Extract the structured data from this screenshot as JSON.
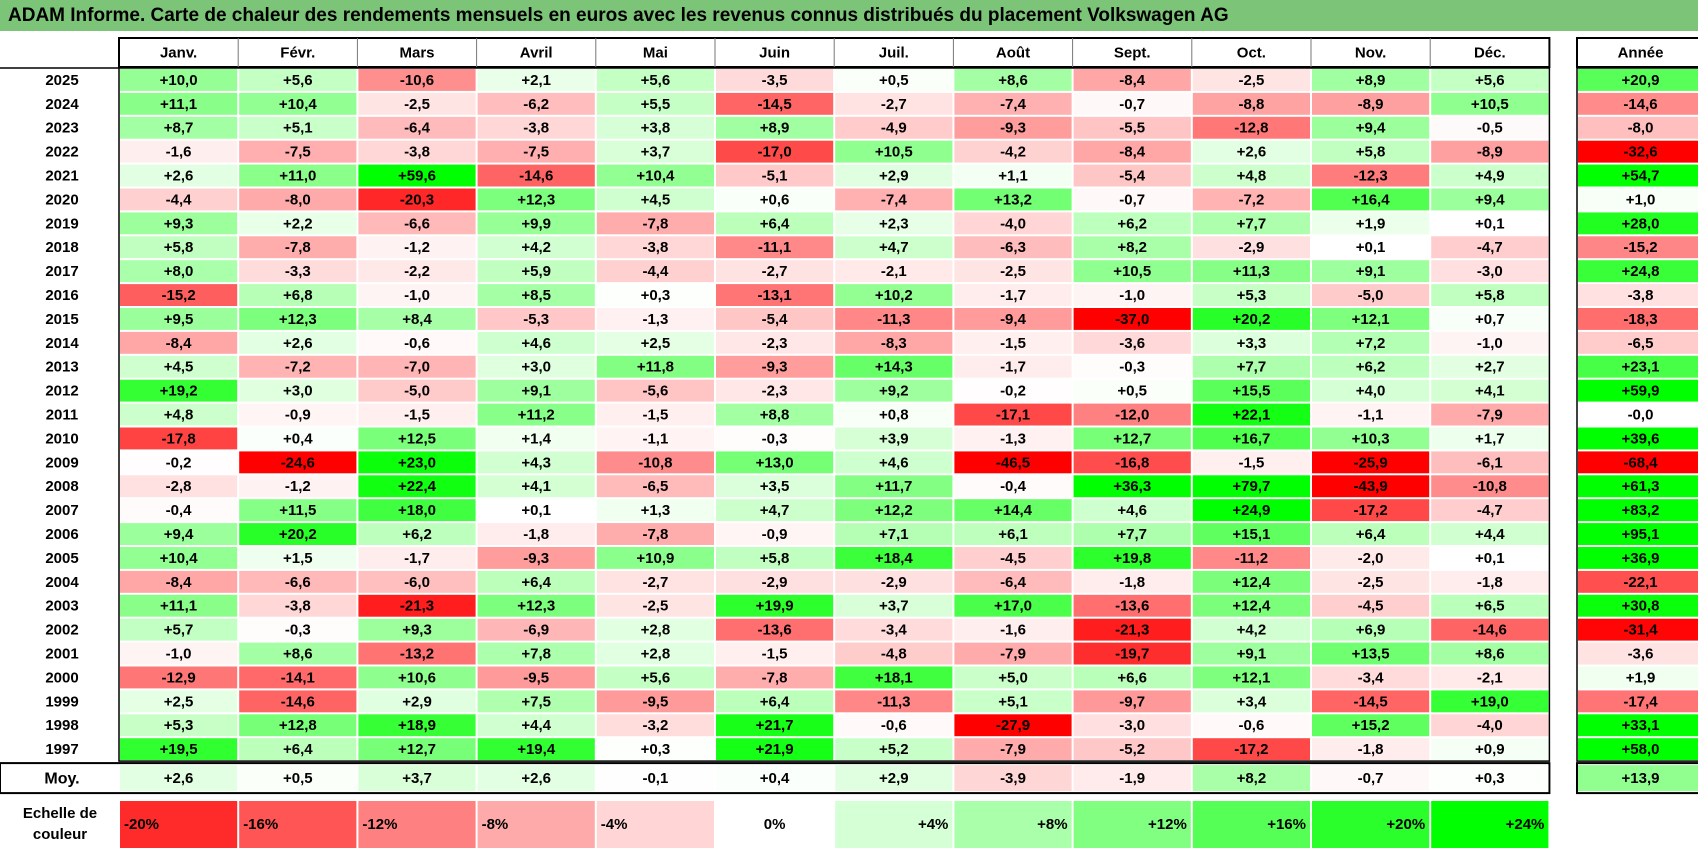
{
  "title": "ADAM Informe. Carte de chaleur des rendements mensuels en euros avec les revenus connus distribués du placement Volkswagen AG",
  "colors": {
    "title_bg": "#7cc578",
    "positive": "#00ff00",
    "negative": "#ff0000",
    "neutral": "#ffffff"
  },
  "chart_data": {
    "type": "heatmap",
    "unit": "%",
    "months": [
      "Janv.",
      "Févr.",
      "Mars",
      "Avril",
      "Mai",
      "Juin",
      "Juil.",
      "Août",
      "Sept.",
      "Oct.",
      "Nov.",
      "Déc."
    ],
    "year_header": "Année",
    "avg_label": "Moy.",
    "rows": [
      {
        "year": "2025",
        "values": [
          "+10,0",
          "+5,6",
          "-10,6",
          "+2,1",
          "+5,6",
          "-3,5",
          "+0,5",
          "+8,6",
          "-8,4",
          "-2,5",
          "+8,9",
          "+5,6"
        ],
        "annual": "+20,9"
      },
      {
        "year": "2024",
        "values": [
          "+11,1",
          "+10,4",
          "-2,5",
          "-6,2",
          "+5,5",
          "-14,5",
          "-2,7",
          "-7,4",
          "-0,7",
          "-8,8",
          "-8,9",
          "+10,5"
        ],
        "annual": "-14,6"
      },
      {
        "year": "2023",
        "values": [
          "+8,7",
          "+5,1",
          "-6,4",
          "-3,8",
          "+3,8",
          "+8,9",
          "-4,9",
          "-9,3",
          "-5,5",
          "-12,8",
          "+9,4",
          "-0,5"
        ],
        "annual": "-8,0"
      },
      {
        "year": "2022",
        "values": [
          "-1,6",
          "-7,5",
          "-3,8",
          "-7,5",
          "+3,7",
          "-17,0",
          "+10,5",
          "-4,2",
          "-8,4",
          "+2,6",
          "+5,8",
          "-8,9"
        ],
        "annual": "-32,6"
      },
      {
        "year": "2021",
        "values": [
          "+2,6",
          "+11,0",
          "+59,6",
          "-14,6",
          "+10,4",
          "-5,1",
          "+2,9",
          "+1,1",
          "-5,4",
          "+4,8",
          "-12,3",
          "+4,9"
        ],
        "annual": "+54,7"
      },
      {
        "year": "2020",
        "values": [
          "-4,4",
          "-8,0",
          "-20,3",
          "+12,3",
          "+4,5",
          "+0,6",
          "-7,4",
          "+13,2",
          "-0,7",
          "-7,2",
          "+16,4",
          "+9,4"
        ],
        "annual": "+1,0"
      },
      {
        "year": "2019",
        "values": [
          "+9,3",
          "+2,2",
          "-6,6",
          "+9,9",
          "-7,8",
          "+6,4",
          "+2,3",
          "-4,0",
          "+6,2",
          "+7,7",
          "+1,9",
          "+0,1"
        ],
        "annual": "+28,0"
      },
      {
        "year": "2018",
        "values": [
          "+5,8",
          "-7,8",
          "-1,2",
          "+4,2",
          "-3,8",
          "-11,1",
          "+4,7",
          "-6,3",
          "+8,2",
          "-2,9",
          "+0,1",
          "-4,7"
        ],
        "annual": "-15,2"
      },
      {
        "year": "2017",
        "values": [
          "+8,0",
          "-3,3",
          "-2,2",
          "+5,9",
          "-4,4",
          "-2,7",
          "-2,1",
          "-2,5",
          "+10,5",
          "+11,3",
          "+9,1",
          "-3,0"
        ],
        "annual": "+24,8"
      },
      {
        "year": "2016",
        "values": [
          "-15,2",
          "+6,8",
          "-1,0",
          "+8,5",
          "+0,3",
          "-13,1",
          "+10,2",
          "-1,7",
          "-1,0",
          "+5,3",
          "-5,0",
          "+5,8"
        ],
        "annual": "-3,8"
      },
      {
        "year": "2015",
        "values": [
          "+9,5",
          "+12,3",
          "+8,4",
          "-5,3",
          "-1,3",
          "-5,4",
          "-11,3",
          "-9,4",
          "-37,0",
          "+20,2",
          "+12,1",
          "+0,7"
        ],
        "annual": "-18,3"
      },
      {
        "year": "2014",
        "values": [
          "-8,4",
          "+2,6",
          "-0,6",
          "+4,6",
          "+2,5",
          "-2,3",
          "-8,3",
          "-1,5",
          "-3,6",
          "+3,3",
          "+7,2",
          "-1,0"
        ],
        "annual": "-6,5"
      },
      {
        "year": "2013",
        "values": [
          "+4,5",
          "-7,2",
          "-7,0",
          "+3,0",
          "+11,8",
          "-9,3",
          "+14,3",
          "-1,7",
          "-0,3",
          "+7,7",
          "+6,2",
          "+2,7"
        ],
        "annual": "+23,1"
      },
      {
        "year": "2012",
        "values": [
          "+19,2",
          "+3,0",
          "-5,0",
          "+9,1",
          "-5,6",
          "-2,3",
          "+9,2",
          "-0,2",
          "+0,5",
          "+15,5",
          "+4,0",
          "+4,1"
        ],
        "annual": "+59,9"
      },
      {
        "year": "2011",
        "values": [
          "+4,8",
          "-0,9",
          "-1,5",
          "+11,2",
          "-1,5",
          "+8,8",
          "+0,8",
          "-17,1",
          "-12,0",
          "+22,1",
          "-1,1",
          "-7,9"
        ],
        "annual": "-0,0"
      },
      {
        "year": "2010",
        "values": [
          "-17,8",
          "+0,4",
          "+12,5",
          "+1,4",
          "-1,1",
          "-0,3",
          "+3,9",
          "-1,3",
          "+12,7",
          "+16,7",
          "+10,3",
          "+1,7"
        ],
        "annual": "+39,6"
      },
      {
        "year": "2009",
        "values": [
          "-0,2",
          "-24,6",
          "+23,0",
          "+4,3",
          "-10,8",
          "+13,0",
          "+4,6",
          "-46,5",
          "-16,8",
          "-1,5",
          "-25,9",
          "-6,1"
        ],
        "annual": "-68,4"
      },
      {
        "year": "2008",
        "values": [
          "-2,8",
          "-1,2",
          "+22,4",
          "+4,1",
          "-6,5",
          "+3,5",
          "+11,7",
          "-0,4",
          "+36,3",
          "+79,7",
          "-43,9",
          "-10,8"
        ],
        "annual": "+61,3"
      },
      {
        "year": "2007",
        "values": [
          "-0,4",
          "+11,5",
          "+18,0",
          "+0,1",
          "+1,3",
          "+4,7",
          "+12,2",
          "+14,4",
          "+4,6",
          "+24,9",
          "-17,2",
          "-4,7"
        ],
        "annual": "+83,2"
      },
      {
        "year": "2006",
        "values": [
          "+9,4",
          "+20,2",
          "+6,2",
          "-1,8",
          "-7,8",
          "-0,9",
          "+7,1",
          "+6,1",
          "+7,7",
          "+15,1",
          "+6,4",
          "+4,4"
        ],
        "annual": "+95,1"
      },
      {
        "year": "2005",
        "values": [
          "+10,4",
          "+1,5",
          "-1,7",
          "-9,3",
          "+10,9",
          "+5,8",
          "+18,4",
          "-4,5",
          "+19,8",
          "-11,2",
          "-2,0",
          "+0,1"
        ],
        "annual": "+36,9"
      },
      {
        "year": "2004",
        "values": [
          "-8,4",
          "-6,6",
          "-6,0",
          "+6,4",
          "-2,7",
          "-2,9",
          "-2,9",
          "-6,4",
          "-1,8",
          "+12,4",
          "-2,5",
          "-1,8"
        ],
        "annual": "-22,1"
      },
      {
        "year": "2003",
        "values": [
          "+11,1",
          "-3,8",
          "-21,3",
          "+12,3",
          "-2,5",
          "+19,9",
          "+3,7",
          "+17,0",
          "-13,6",
          "+12,4",
          "-4,5",
          "+6,5"
        ],
        "annual": "+30,8"
      },
      {
        "year": "2002",
        "values": [
          "+5,7",
          "-0,3",
          "+9,3",
          "-6,9",
          "+2,8",
          "-13,6",
          "-3,4",
          "-1,6",
          "-21,3",
          "+4,2",
          "+6,9",
          "-14,6"
        ],
        "annual": "-31,4"
      },
      {
        "year": "2001",
        "values": [
          "-1,0",
          "+8,6",
          "-13,2",
          "+7,8",
          "+2,8",
          "-1,5",
          "-4,8",
          "-7,9",
          "-19,7",
          "+9,1",
          "+13,5",
          "+8,6"
        ],
        "annual": "-3,6"
      },
      {
        "year": "2000",
        "values": [
          "-12,9",
          "-14,1",
          "+10,6",
          "-9,5",
          "+5,6",
          "-7,8",
          "+18,1",
          "+5,0",
          "+6,6",
          "+12,1",
          "-3,4",
          "-2,1"
        ],
        "annual": "+1,9"
      },
      {
        "year": "1999",
        "values": [
          "+2,5",
          "-14,6",
          "+2,9",
          "+7,5",
          "-9,5",
          "+6,4",
          "-11,3",
          "+5,1",
          "-9,7",
          "+3,4",
          "-14,5",
          "+19,0"
        ],
        "annual": "-17,4"
      },
      {
        "year": "1998",
        "values": [
          "+5,3",
          "+12,8",
          "+18,9",
          "+4,4",
          "-3,2",
          "+21,7",
          "-0,6",
          "-27,9",
          "-3,0",
          "-0,6",
          "+15,2",
          "-4,0"
        ],
        "annual": "+33,1"
      },
      {
        "year": "1997",
        "values": [
          "+19,5",
          "+6,4",
          "+12,7",
          "+19,4",
          "+0,3",
          "+21,9",
          "+5,2",
          "-7,9",
          "-5,2",
          "-17,2",
          "-1,8",
          "+0,9"
        ],
        "annual": "+58,0"
      }
    ],
    "average": {
      "values": [
        "+2,6",
        "+0,5",
        "+3,7",
        "+2,6",
        "-0,1",
        "+0,4",
        "+2,9",
        "-3,9",
        "-1,9",
        "+8,2",
        "-0,7",
        "+0,3"
      ],
      "annual": "+13,9"
    },
    "scale": {
      "label_line1": "Echelle de",
      "label_line2": "couleur",
      "items": [
        "-20%",
        "-16%",
        "-12%",
        "-8%",
        "-4%",
        "0%",
        "+4%",
        "+8%",
        "+12%",
        "+16%",
        "+20%",
        "+24%"
      ]
    }
  }
}
